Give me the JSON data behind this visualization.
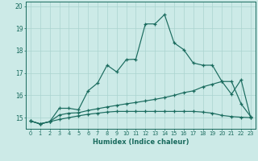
{
  "title": "",
  "xlabel": "Humidex (Indice chaleur)",
  "background_color": "#cceae7",
  "grid_color": "#aad4d0",
  "line_color": "#1a6b5e",
  "xlim": [
    -0.5,
    23.5
  ],
  "ylim": [
    14.5,
    20.2
  ],
  "yticks": [
    15,
    16,
    17,
    18,
    19,
    20
  ],
  "xticks": [
    0,
    1,
    2,
    3,
    4,
    5,
    6,
    7,
    8,
    9,
    10,
    11,
    12,
    13,
    14,
    15,
    16,
    17,
    18,
    19,
    20,
    21,
    22,
    23
  ],
  "line1_x": [
    0,
    1,
    2,
    3,
    4,
    5,
    6,
    7,
    8,
    9,
    10,
    11,
    12,
    13,
    14,
    15,
    16,
    17,
    18,
    19,
    20,
    21,
    22,
    23
  ],
  "line1_y": [
    14.85,
    14.72,
    14.82,
    15.42,
    15.42,
    15.35,
    16.2,
    16.55,
    17.35,
    17.05,
    17.6,
    17.62,
    19.2,
    19.2,
    19.62,
    18.35,
    18.05,
    17.45,
    17.35,
    17.35,
    16.62,
    16.05,
    16.7,
    15.0
  ],
  "line2_x": [
    0,
    1,
    2,
    3,
    4,
    5,
    6,
    7,
    8,
    9,
    10,
    11,
    12,
    13,
    14,
    15,
    16,
    17,
    18,
    19,
    20,
    21,
    22,
    23
  ],
  "line2_y": [
    14.85,
    14.72,
    14.82,
    15.12,
    15.2,
    15.22,
    15.32,
    15.4,
    15.48,
    15.55,
    15.62,
    15.68,
    15.75,
    15.82,
    15.9,
    16.0,
    16.12,
    16.2,
    16.38,
    16.5,
    16.62,
    16.62,
    15.62,
    15.05
  ],
  "line3_x": [
    0,
    1,
    2,
    3,
    4,
    5,
    6,
    7,
    8,
    9,
    10,
    11,
    12,
    13,
    14,
    15,
    16,
    17,
    18,
    19,
    20,
    21,
    22,
    23
  ],
  "line3_y": [
    14.85,
    14.72,
    14.82,
    14.92,
    15.0,
    15.08,
    15.15,
    15.2,
    15.25,
    15.28,
    15.28,
    15.28,
    15.28,
    15.28,
    15.28,
    15.28,
    15.28,
    15.28,
    15.25,
    15.2,
    15.1,
    15.05,
    15.02,
    15.0
  ]
}
